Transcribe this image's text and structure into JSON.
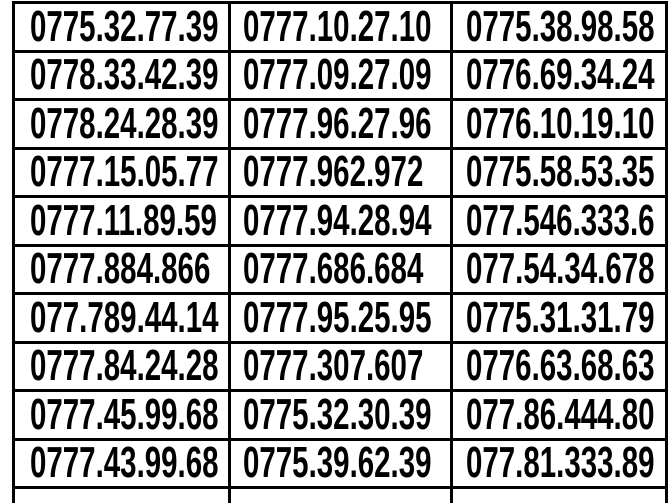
{
  "table": {
    "rows": [
      [
        "0775.32.77.39",
        "0777.10.27.10",
        "0775.38.98.58"
      ],
      [
        "0778.33.42.39",
        "0777.09.27.09",
        "0776.69.34.24"
      ],
      [
        "0778.24.28.39",
        "0777.96.27.96",
        "0776.10.19.10"
      ],
      [
        "0777.15.05.77",
        "0777.962.972",
        "0775.58.53.35"
      ],
      [
        "0777.11.89.59",
        "0777.94.28.94",
        "077.546.333.6"
      ],
      [
        "0777.884.866",
        "0777.686.684",
        "077.54.34.678"
      ],
      [
        "077.789.44.14",
        "0777.95.25.95",
        "0775.31.31.79"
      ],
      [
        "0777.84.24.28",
        "0777.307.607",
        "0776.63.68.63"
      ],
      [
        "0777.45.99.68",
        "0775.32.30.39",
        "077.86.444.80"
      ],
      [
        "0777.43.99.68",
        "0775.39.62.39",
        "077.81.333.89"
      ]
    ],
    "colors": {
      "text": "#000000",
      "border": "#000000",
      "background": "#ffffff"
    }
  }
}
